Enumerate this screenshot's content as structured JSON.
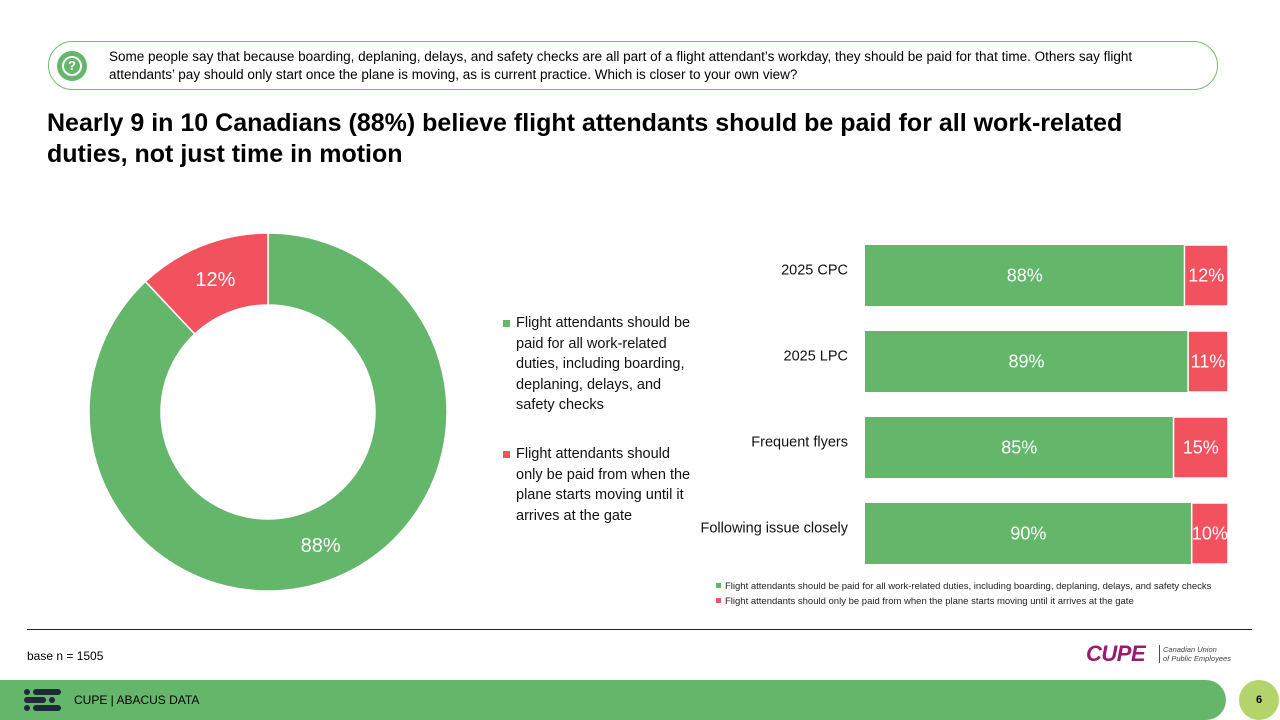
{
  "question": {
    "icon": "question-mark-icon",
    "text": "Some people say that because boarding, deplaning, delays, and safety checks are all part of a flight attendant’s workday, they should be paid for that time. Others say flight attendants’ pay should only start once the plane is moving, as is current practice. Which is closer to your own view?"
  },
  "title": "Nearly 9 in 10 Canadians (88%) believe flight attendants should be paid for all work-related duties, not just time in motion",
  "colors": {
    "green": "#64b66a",
    "red": "#f2525e",
    "accent_border": "#76b96f",
    "page_badge": "#b5d36b",
    "logo": "#9b1c6e"
  },
  "chart_data": [
    {
      "type": "pie",
      "donut": true,
      "slices": [
        {
          "label": "Flight attendants should be paid for all work-related duties, including boarding, deplaning, delays, and safety checks",
          "value": 88,
          "display": "88%",
          "color": "#64b66a"
        },
        {
          "label": "Flight attendants should only be paid from when the plane starts moving until it arrives at the gate",
          "value": 12,
          "display": "12%",
          "color": "#f2525e"
        }
      ],
      "legend_position": "right"
    },
    {
      "type": "bar",
      "orientation": "horizontal",
      "stacked": true,
      "categories": [
        "2025 CPC",
        "2025 LPC",
        "Frequent flyers",
        "Following issue closely"
      ],
      "series": [
        {
          "name": "Flight attendants should be paid for all work-related duties, including boarding, deplaning, delays, and safety checks",
          "values": [
            88,
            89,
            85,
            90
          ],
          "labels": [
            "88%",
            "89%",
            "85%",
            "90%"
          ],
          "color": "#64b66a"
        },
        {
          "name": "Flight attendants should only be paid from when the plane starts moving until it arrives at the gate",
          "values": [
            12,
            11,
            15,
            10
          ],
          "labels": [
            "12%",
            "11%",
            "15%",
            "10%"
          ],
          "color": "#f2525e"
        }
      ],
      "xlim": [
        0,
        100
      ],
      "grid": false,
      "legend_position": "bottom"
    }
  ],
  "footnote": "base n = 1505",
  "logo": {
    "word": "CUPE",
    "line1": "Canadian Union",
    "line2": "of Public Employees"
  },
  "footer": {
    "text": "CUPE  |  ABACUS DATA",
    "icon": "abacus-logo-icon"
  },
  "page_number": "6"
}
